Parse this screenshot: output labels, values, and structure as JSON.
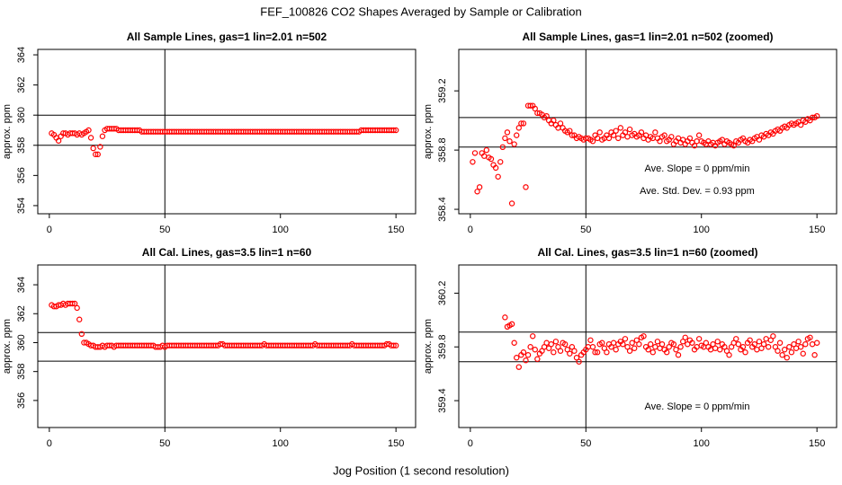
{
  "title": "FEF_100826  CO2 Shapes Averaged by Sample or Calibration",
  "x_label": "Jog Position (1 second resolution)",
  "chart_data": [
    {
      "type": "scatter",
      "title": "All Sample Lines, gas=1 lin=2.01 n=502",
      "y_label": "approx. ppm",
      "color": "#ff0000",
      "xlim": [
        -5,
        158.5
      ],
      "ylim": [
        353.46,
        364.36
      ],
      "xticks": [
        0,
        50,
        100,
        150
      ],
      "yticks": [
        354,
        356,
        358,
        360,
        362,
        364
      ],
      "hlines": [
        360,
        358
      ],
      "vline": 50,
      "annotations": [],
      "x": [
        1,
        2,
        3,
        4,
        5,
        6,
        7,
        8,
        9,
        10,
        11,
        12,
        13,
        14,
        15,
        16,
        17,
        18,
        19,
        20,
        21,
        22,
        23,
        24,
        25,
        26,
        27,
        28,
        29,
        30,
        31,
        32,
        33,
        34,
        35,
        36,
        37,
        38,
        39,
        40,
        41,
        42,
        43,
        44,
        45,
        46,
        47,
        48,
        49,
        50,
        51,
        52,
        53,
        54,
        55,
        56,
        57,
        58,
        59,
        60,
        61,
        62,
        63,
        64,
        65,
        66,
        67,
        68,
        69,
        70,
        71,
        72,
        73,
        74,
        75,
        76,
        77,
        78,
        79,
        80,
        81,
        82,
        83,
        84,
        85,
        86,
        87,
        88,
        89,
        90,
        91,
        92,
        93,
        94,
        95,
        96,
        97,
        98,
        99,
        100,
        101,
        102,
        103,
        104,
        105,
        106,
        107,
        108,
        109,
        110,
        111,
        112,
        113,
        114,
        115,
        116,
        117,
        118,
        119,
        120,
        121,
        122,
        123,
        124,
        125,
        126,
        127,
        128,
        129,
        130,
        131,
        132,
        133,
        134,
        135,
        136,
        137,
        138,
        139,
        140,
        141,
        142,
        143,
        144,
        145,
        146,
        147,
        148,
        149,
        150
      ],
      "values": [
        358.8,
        358.7,
        358.5,
        358.3,
        358.6,
        358.8,
        358.8,
        358.7,
        358.8,
        358.8,
        358.8,
        358.7,
        358.8,
        358.7,
        358.8,
        358.9,
        359.0,
        358.5,
        357.8,
        357.4,
        357.4,
        357.9,
        358.6,
        359.0,
        359.1,
        359.1,
        359.1,
        359.1,
        359.1,
        359.0,
        359.0,
        359.0,
        359.0,
        359.0,
        359.0,
        359.0,
        359.0,
        359.0,
        359.0,
        358.9,
        358.9,
        358.9,
        358.9,
        358.9,
        358.9,
        358.9,
        358.9,
        358.9,
        358.9,
        358.9,
        358.9,
        358.9,
        358.9,
        358.9,
        358.9,
        358.9,
        358.9,
        358.9,
        358.9,
        358.9,
        358.9,
        358.9,
        358.9,
        358.9,
        358.9,
        358.9,
        358.9,
        358.9,
        358.9,
        358.9,
        358.9,
        358.9,
        358.9,
        358.9,
        358.9,
        358.9,
        358.9,
        358.9,
        358.9,
        358.9,
        358.9,
        358.9,
        358.9,
        358.9,
        358.9,
        358.9,
        358.9,
        358.9,
        358.9,
        358.9,
        358.9,
        358.9,
        358.9,
        358.9,
        358.9,
        358.9,
        358.9,
        358.9,
        358.9,
        358.9,
        358.9,
        358.9,
        358.9,
        358.9,
        358.9,
        358.9,
        358.9,
        358.9,
        358.9,
        358.9,
        358.9,
        358.9,
        358.9,
        358.9,
        358.9,
        358.9,
        358.9,
        358.9,
        358.9,
        358.9,
        358.9,
        358.9,
        358.9,
        358.9,
        358.9,
        358.9,
        358.9,
        358.9,
        358.9,
        358.9,
        358.9,
        358.9,
        358.9,
        358.9,
        359.0,
        359.0,
        359.0,
        359.0,
        359.0,
        359.0,
        359.0,
        359.0,
        359.0,
        359.0,
        359.0,
        359.0,
        359.0,
        359.0,
        359.0,
        359.0
      ]
    },
    {
      "type": "scatter",
      "title": "All Sample Lines, gas=1 lin=2.01 n=502 (zoomed)",
      "y_label": "approx. ppm",
      "color": "#ff0000",
      "xlim": [
        -5,
        158.5
      ],
      "ylim": [
        358.37,
        359.48
      ],
      "xticks": [
        0,
        50,
        100,
        150
      ],
      "yticks": [
        358.4,
        358.8,
        359.2
      ],
      "hlines": [
        359.02,
        358.82
      ],
      "vline": 50,
      "annotations": [
        "Ave. Slope =  0  ppm/min",
        "Ave. Std. Dev. =  0.93  ppm"
      ],
      "x": [
        1,
        2,
        3,
        4,
        5,
        6,
        7,
        8,
        9,
        10,
        11,
        12,
        13,
        14,
        15,
        16,
        17,
        18,
        19,
        20,
        21,
        22,
        23,
        24,
        25,
        26,
        27,
        28,
        29,
        30,
        31,
        32,
        33,
        34,
        35,
        36,
        37,
        38,
        39,
        40,
        41,
        42,
        43,
        44,
        45,
        46,
        47,
        48,
        49,
        50,
        51,
        52,
        53,
        54,
        55,
        56,
        57,
        58,
        59,
        60,
        61,
        62,
        63,
        64,
        65,
        66,
        67,
        68,
        69,
        70,
        71,
        72,
        73,
        74,
        75,
        76,
        77,
        78,
        79,
        80,
        81,
        82,
        83,
        84,
        85,
        86,
        87,
        88,
        89,
        90,
        91,
        92,
        93,
        94,
        95,
        96,
        97,
        98,
        99,
        100,
        101,
        102,
        103,
        104,
        105,
        106,
        107,
        108,
        109,
        110,
        111,
        112,
        113,
        114,
        115,
        116,
        117,
        118,
        119,
        120,
        121,
        122,
        123,
        124,
        125,
        126,
        127,
        128,
        129,
        130,
        131,
        132,
        133,
        134,
        135,
        136,
        137,
        138,
        139,
        140,
        141,
        142,
        143,
        144,
        145,
        146,
        147,
        148,
        149,
        150
      ],
      "values": [
        358.72,
        358.78,
        358.52,
        358.55,
        358.78,
        358.76,
        358.8,
        358.75,
        358.74,
        358.7,
        358.68,
        358.62,
        358.72,
        358.82,
        358.88,
        358.92,
        358.86,
        358.44,
        358.84,
        358.9,
        358.95,
        358.98,
        358.98,
        358.55,
        359.1,
        359.1,
        359.1,
        359.08,
        359.05,
        359.05,
        359.04,
        359.02,
        359.03,
        359.0,
        358.98,
        359.0,
        358.97,
        358.95,
        358.98,
        358.95,
        358.93,
        358.92,
        358.93,
        358.9,
        358.9,
        358.88,
        358.89,
        358.88,
        358.87,
        358.88,
        358.88,
        358.87,
        358.86,
        358.9,
        358.88,
        358.92,
        358.87,
        358.88,
        358.9,
        358.88,
        358.92,
        358.9,
        358.93,
        358.88,
        358.95,
        358.9,
        358.92,
        358.89,
        358.94,
        358.9,
        358.91,
        358.89,
        358.9,
        358.92,
        358.88,
        358.9,
        358.87,
        358.89,
        358.88,
        358.92,
        358.88,
        358.86,
        358.89,
        358.9,
        358.86,
        358.87,
        358.89,
        358.84,
        358.86,
        358.88,
        358.85,
        358.87,
        358.84,
        358.86,
        358.88,
        358.85,
        358.83,
        358.86,
        358.9,
        358.86,
        358.85,
        358.84,
        358.86,
        358.84,
        358.85,
        358.83,
        358.85,
        358.86,
        358.87,
        358.84,
        358.86,
        358.85,
        358.84,
        358.83,
        358.86,
        358.85,
        358.87,
        358.88,
        358.86,
        358.85,
        358.87,
        358.86,
        358.88,
        358.89,
        358.87,
        358.9,
        358.89,
        358.91,
        358.9,
        358.92,
        358.91,
        358.93,
        358.94,
        358.93,
        358.95,
        358.96,
        358.95,
        358.97,
        358.98,
        358.97,
        358.98,
        358.99,
        358.97,
        359.0,
        358.99,
        359.01,
        359.0,
        359.02,
        359.02,
        359.03
      ]
    },
    {
      "type": "scatter",
      "title": "All Cal. Lines, gas=3.5 lin=1 n=60",
      "y_label": "approx. ppm",
      "color": "#ff0000",
      "xlim": [
        -5,
        158.5
      ],
      "ylim": [
        354.13,
        365.37
      ],
      "xticks": [
        0,
        50,
        100,
        150
      ],
      "yticks": [
        356,
        358,
        360,
        362,
        364
      ],
      "hlines": [
        360.7,
        358.72
      ],
      "vline": 50,
      "annotations": [],
      "x": [
        1,
        2,
        3,
        4,
        5,
        6,
        7,
        8,
        9,
        10,
        11,
        12,
        13,
        14,
        15,
        16,
        17,
        18,
        19,
        20,
        21,
        22,
        23,
        24,
        25,
        26,
        27,
        28,
        29,
        30,
        31,
        32,
        33,
        34,
        35,
        36,
        37,
        38,
        39,
        40,
        41,
        42,
        43,
        44,
        45,
        46,
        47,
        48,
        49,
        50,
        51,
        52,
        53,
        54,
        55,
        56,
        57,
        58,
        59,
        60,
        61,
        62,
        63,
        64,
        65,
        66,
        67,
        68,
        69,
        70,
        71,
        72,
        73,
        74,
        75,
        76,
        77,
        78,
        79,
        80,
        81,
        82,
        83,
        84,
        85,
        86,
        87,
        88,
        89,
        90,
        91,
        92,
        93,
        94,
        95,
        96,
        97,
        98,
        99,
        100,
        101,
        102,
        103,
        104,
        105,
        106,
        107,
        108,
        109,
        110,
        111,
        112,
        113,
        114,
        115,
        116,
        117,
        118,
        119,
        120,
        121,
        122,
        123,
        124,
        125,
        126,
        127,
        128,
        129,
        130,
        131,
        132,
        133,
        134,
        135,
        136,
        137,
        138,
        139,
        140,
        141,
        142,
        143,
        144,
        145,
        146,
        147,
        148,
        149,
        150
      ],
      "values": [
        362.6,
        362.5,
        362.5,
        362.6,
        362.6,
        362.7,
        362.6,
        362.7,
        362.7,
        362.7,
        362.7,
        362.4,
        361.6,
        360.6,
        360.0,
        360.0,
        359.9,
        359.8,
        359.8,
        359.7,
        359.7,
        359.7,
        359.8,
        359.7,
        359.8,
        359.8,
        359.8,
        359.7,
        359.8,
        359.8,
        359.8,
        359.8,
        359.8,
        359.8,
        359.8,
        359.8,
        359.8,
        359.8,
        359.8,
        359.8,
        359.8,
        359.8,
        359.8,
        359.8,
        359.8,
        359.7,
        359.7,
        359.7,
        359.8,
        359.7,
        359.8,
        359.8,
        359.8,
        359.8,
        359.8,
        359.8,
        359.8,
        359.8,
        359.8,
        359.8,
        359.8,
        359.8,
        359.8,
        359.8,
        359.8,
        359.8,
        359.8,
        359.8,
        359.8,
        359.8,
        359.8,
        359.8,
        359.8,
        359.9,
        359.9,
        359.8,
        359.8,
        359.8,
        359.8,
        359.8,
        359.8,
        359.8,
        359.8,
        359.8,
        359.8,
        359.8,
        359.8,
        359.8,
        359.8,
        359.8,
        359.8,
        359.8,
        359.9,
        359.8,
        359.8,
        359.8,
        359.8,
        359.8,
        359.8,
        359.8,
        359.8,
        359.8,
        359.8,
        359.8,
        359.8,
        359.8,
        359.8,
        359.8,
        359.8,
        359.8,
        359.8,
        359.8,
        359.8,
        359.8,
        359.9,
        359.8,
        359.8,
        359.8,
        359.8,
        359.8,
        359.8,
        359.8,
        359.8,
        359.8,
        359.8,
        359.8,
        359.8,
        359.8,
        359.8,
        359.8,
        359.9,
        359.8,
        359.8,
        359.8,
        359.8,
        359.8,
        359.8,
        359.8,
        359.8,
        359.8,
        359.8,
        359.8,
        359.8,
        359.8,
        359.8,
        359.9,
        359.9,
        359.8,
        359.8,
        359.8
      ]
    },
    {
      "type": "scatter",
      "title": "All Cal. Lines, gas=3.5 lin=1 n=60 (zoomed)",
      "y_label": "approx. ppm",
      "color": "#ff0000",
      "xlim": [
        -5,
        158.5
      ],
      "ylim": [
        359.2,
        360.41
      ],
      "xticks": [
        0,
        50,
        100,
        150
      ],
      "yticks": [
        359.4,
        359.8,
        360.2
      ],
      "hlines": [
        359.91,
        359.69
      ],
      "vline": 50,
      "annotations": [
        "Ave. Slope =  0  ppm/min"
      ],
      "x": [
        15,
        16,
        17,
        18,
        19,
        20,
        21,
        22,
        23,
        24,
        25,
        26,
        27,
        28,
        29,
        30,
        31,
        32,
        33,
        34,
        35,
        36,
        37,
        38,
        39,
        40,
        41,
        42,
        43,
        44,
        45,
        46,
        47,
        48,
        49,
        50,
        51,
        52,
        53,
        54,
        55,
        56,
        57,
        58,
        59,
        60,
        61,
        62,
        63,
        64,
        65,
        66,
        67,
        68,
        69,
        70,
        71,
        72,
        73,
        74,
        75,
        76,
        77,
        78,
        79,
        80,
        81,
        82,
        83,
        84,
        85,
        86,
        87,
        88,
        89,
        90,
        91,
        92,
        93,
        94,
        95,
        96,
        97,
        98,
        99,
        100,
        101,
        102,
        103,
        104,
        105,
        106,
        107,
        108,
        109,
        110,
        111,
        112,
        113,
        114,
        115,
        116,
        117,
        118,
        119,
        120,
        121,
        122,
        123,
        124,
        125,
        126,
        127,
        128,
        129,
        130,
        131,
        132,
        133,
        134,
        135,
        136,
        137,
        138,
        139,
        140,
        141,
        142,
        143,
        144,
        145,
        146,
        147,
        148,
        149,
        150
      ],
      "values": [
        360.02,
        359.95,
        359.96,
        359.97,
        359.83,
        359.72,
        359.65,
        359.74,
        359.76,
        359.7,
        359.74,
        359.8,
        359.88,
        359.78,
        359.71,
        359.75,
        359.77,
        359.8,
        359.83,
        359.79,
        359.82,
        359.76,
        359.84,
        359.8,
        359.77,
        359.83,
        359.82,
        359.78,
        359.75,
        359.8,
        359.77,
        359.72,
        359.69,
        359.74,
        359.76,
        359.78,
        359.8,
        359.85,
        359.8,
        359.76,
        359.76,
        359.82,
        359.83,
        359.79,
        359.76,
        359.82,
        359.8,
        359.83,
        359.78,
        359.82,
        359.84,
        359.82,
        359.86,
        359.8,
        359.77,
        359.83,
        359.79,
        359.85,
        359.82,
        359.87,
        359.88,
        359.8,
        359.78,
        359.82,
        359.76,
        359.8,
        359.84,
        359.79,
        359.82,
        359.78,
        359.76,
        359.8,
        359.83,
        359.82,
        359.78,
        359.74,
        359.8,
        359.84,
        359.87,
        359.82,
        359.85,
        359.83,
        359.78,
        359.8,
        359.86,
        359.81,
        359.8,
        359.83,
        359.8,
        359.78,
        359.82,
        359.79,
        359.84,
        359.78,
        359.82,
        359.8,
        359.77,
        359.74,
        359.8,
        359.83,
        359.86,
        359.82,
        359.78,
        359.8,
        359.76,
        359.83,
        359.85,
        359.8,
        359.82,
        359.78,
        359.84,
        359.79,
        359.82,
        359.86,
        359.8,
        359.85,
        359.88,
        359.8,
        359.77,
        359.83,
        359.74,
        359.78,
        359.72,
        359.8,
        359.76,
        359.82,
        359.79,
        359.84,
        359.8,
        359.75,
        359.82,
        359.86,
        359.87,
        359.82,
        359.74,
        359.83
      ]
    }
  ]
}
